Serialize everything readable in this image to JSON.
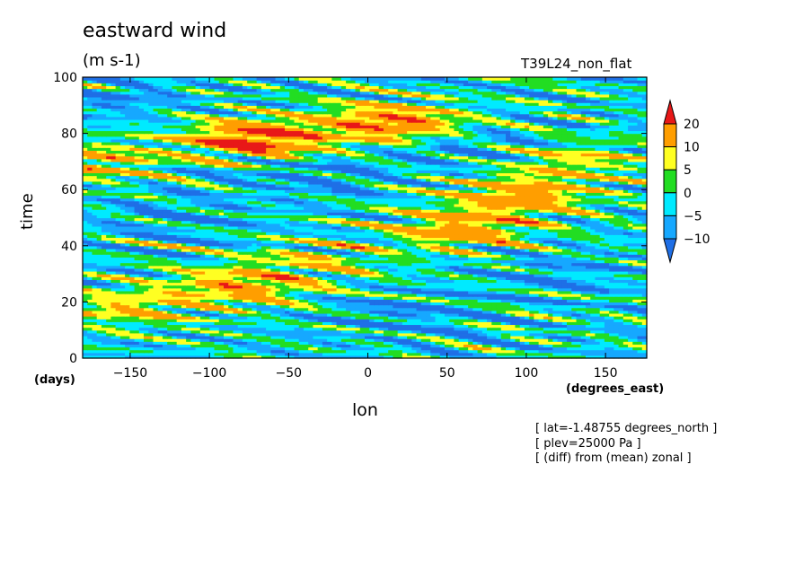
{
  "chart_data": {
    "type": "heatmap",
    "title": "eastward wind",
    "units": "(m s-1)",
    "run_label": "T39L24_non_flat",
    "xlabel": "lon",
    "x_units": "(degrees_east)",
    "ylabel": "time",
    "y_units": "(days)",
    "xlim": [
      -180,
      176
    ],
    "ylim": [
      0,
      100
    ],
    "x_ticks": [
      -150,
      -100,
      -50,
      0,
      50,
      100,
      150
    ],
    "y_ticks": [
      0,
      20,
      40,
      60,
      80,
      100
    ],
    "colorbar": {
      "levels": [
        -10,
        -5,
        0,
        5,
        10,
        20
      ],
      "colors": [
        "#1f6fe6",
        "#16a8ff",
        "#00eaff",
        "#22dd22",
        "#ffff22",
        "#ff9e00",
        "#e81818"
      ],
      "extend": "both"
    },
    "notes": [
      "[ lat=-1.48755 degrees_north ]",
      "[ plev=25000 Pa ]",
      "[ (diff) from (mean) zonal ]"
    ],
    "features": [
      {
        "x": -175,
        "y": 70,
        "value": 11
      },
      {
        "x": -70,
        "y": 78,
        "value": 22
      },
      {
        "x": 15,
        "y": 84,
        "value": 18
      },
      {
        "x": 60,
        "y": 46,
        "value": 14
      },
      {
        "x": 95,
        "y": 58,
        "value": 14
      },
      {
        "x": -80,
        "y": 26,
        "value": 13
      },
      {
        "x": -150,
        "y": 18,
        "value": 9
      },
      {
        "x": -30,
        "y": 35,
        "value": 6
      },
      {
        "x": 130,
        "y": 70,
        "value": 8
      },
      {
        "x": 60,
        "y": 74,
        "value": -10
      },
      {
        "x": -40,
        "y": 65,
        "value": -10
      },
      {
        "x": -120,
        "y": 50,
        "value": -8
      },
      {
        "x": 20,
        "y": 15,
        "value": -9
      },
      {
        "x": 120,
        "y": 30,
        "value": -8
      },
      {
        "x": -160,
        "y": 93,
        "value": -9
      }
    ]
  }
}
